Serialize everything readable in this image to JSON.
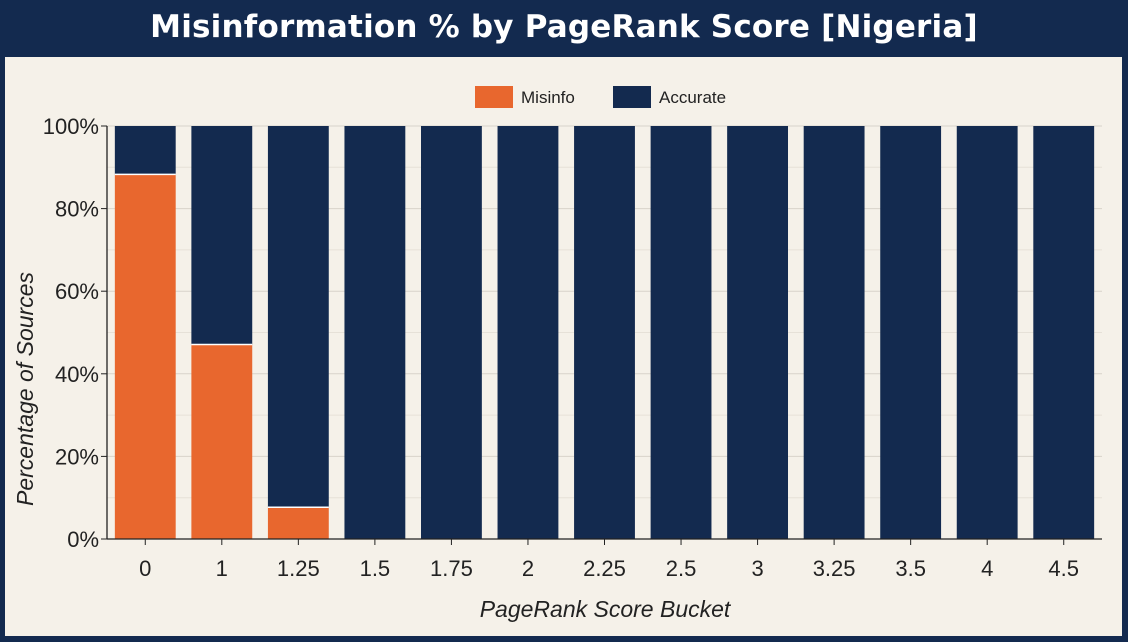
{
  "chart_data": {
    "type": "bar",
    "stacked": true,
    "title": "Misinformation % by PageRank Score [Nigeria]",
    "xlabel": "PageRank Score Bucket",
    "ylabel": "Percentage of Sources",
    "categories": [
      "0",
      "1",
      "1.25",
      "1.5",
      "1.75",
      "2",
      "2.25",
      "2.5",
      "3",
      "3.25",
      "3.5",
      "4",
      "4.5"
    ],
    "series": [
      {
        "name": "Misinfo",
        "color": "#e8672e",
        "values": [
          88.3,
          47.1,
          7.7,
          0,
          0,
          0,
          0,
          0,
          0,
          0,
          0,
          0,
          0
        ]
      },
      {
        "name": "Accurate",
        "color": "#132a4f",
        "values": [
          11.7,
          52.9,
          92.3,
          100,
          100,
          100,
          100,
          100,
          100,
          100,
          100,
          100,
          100
        ]
      }
    ],
    "ylim": [
      0,
      100
    ],
    "yticks": [
      0,
      20,
      40,
      60,
      80,
      100
    ],
    "ytick_labels": [
      "0%",
      "20%",
      "40%",
      "60%",
      "80%",
      "100%"
    ],
    "grid": true,
    "legend_position": "top-center"
  }
}
